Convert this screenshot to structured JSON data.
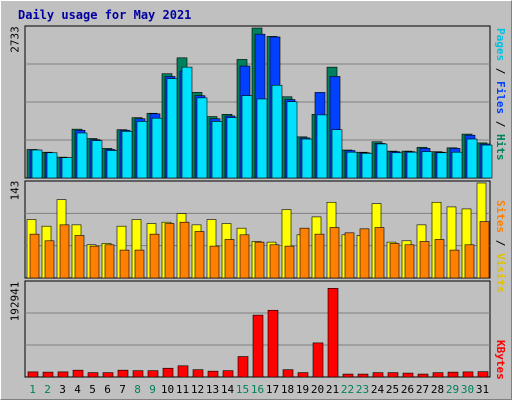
{
  "title": "Daily usage for May 2021",
  "colors": {
    "hits": "#00805c",
    "files": "#0040ff",
    "pages": "#00e0ff",
    "visits": "#ffff00",
    "sites": "#ff8000",
    "kbytes": "#ff0000",
    "weekend_label": "#00805c",
    "weekday_label": "#000000",
    "panel_bg": "#c0c0c0",
    "title": "#0000a0"
  },
  "legend": {
    "top": [
      {
        "text": "Pages",
        "color": "#00c0e0"
      },
      {
        "text": " / ",
        "color": "#000000"
      },
      {
        "text": "Files",
        "color": "#0040ff"
      },
      {
        "text": " / ",
        "color": "#000000"
      },
      {
        "text": "Hits",
        "color": "#00805c"
      }
    ],
    "middle": [
      {
        "text": "Sites",
        "color": "#ff8000"
      },
      {
        "text": " / ",
        "color": "#000000"
      },
      {
        "text": "Visits",
        "color": "#e0c000"
      }
    ],
    "bottom": [
      {
        "text": "KBytes",
        "color": "#ff0000"
      }
    ]
  },
  "chart_data": [
    {
      "type": "bar",
      "panel": "hits-files-pages",
      "categories": [
        "1",
        "2",
        "3",
        "4",
        "5",
        "6",
        "7",
        "8",
        "9",
        "10",
        "11",
        "12",
        "13",
        "14",
        "15",
        "16",
        "17",
        "18",
        "19",
        "20",
        "21",
        "22",
        "23",
        "24",
        "25",
        "26",
        "27",
        "28",
        "29",
        "30",
        "31"
      ],
      "weekend_days": [
        "1",
        "2",
        "8",
        "9",
        "15",
        "16",
        "22",
        "23",
        "29",
        "30"
      ],
      "ymax_label": "2733",
      "ylim": [
        0,
        2733
      ],
      "series": [
        {
          "name": "Hits",
          "values": [
            520,
            470,
            380,
            890,
            720,
            540,
            880,
            1100,
            1180,
            1900,
            2190,
            1560,
            1120,
            1160,
            2160,
            2733,
            2580,
            1480,
            750,
            1160,
            2020,
            510,
            470,
            660,
            490,
            490,
            560,
            480,
            550,
            800,
            640
          ]
        },
        {
          "name": "Files",
          "values": [
            510,
            460,
            370,
            870,
            700,
            520,
            870,
            1080,
            1170,
            1850,
            1950,
            1500,
            1080,
            1130,
            2040,
            2620,
            2570,
            1430,
            730,
            1560,
            1850,
            500,
            460,
            630,
            480,
            480,
            540,
            470,
            540,
            780,
            620
          ]
        },
        {
          "name": "Pages",
          "values": [
            510,
            460,
            370,
            820,
            680,
            500,
            850,
            1030,
            1090,
            1810,
            2020,
            1460,
            1030,
            1100,
            1500,
            1440,
            1690,
            1390,
            710,
            1150,
            880,
            470,
            450,
            620,
            460,
            470,
            480,
            460,
            470,
            710,
            600
          ]
        }
      ]
    },
    {
      "type": "bar",
      "panel": "visits-sites",
      "categories": [
        "1",
        "2",
        "3",
        "4",
        "5",
        "6",
        "7",
        "8",
        "9",
        "10",
        "11",
        "12",
        "13",
        "14",
        "15",
        "16",
        "17",
        "18",
        "19",
        "20",
        "21",
        "22",
        "23",
        "24",
        "25",
        "26",
        "27",
        "28",
        "29",
        "30",
        "31"
      ],
      "ymax_label": "143",
      "ylim": [
        0,
        143
      ],
      "series": [
        {
          "name": "Visits",
          "values": [
            88,
            78,
            118,
            80,
            50,
            52,
            78,
            88,
            82,
            84,
            97,
            80,
            88,
            82,
            75,
            55,
            54,
            103,
            65,
            92,
            114,
            65,
            64,
            112,
            54,
            56,
            80,
            114,
            107,
            104,
            143
          ]
        },
        {
          "name": "Sites",
          "values": [
            66,
            56,
            80,
            64,
            48,
            50,
            42,
            42,
            66,
            82,
            84,
            70,
            48,
            58,
            65,
            54,
            50,
            48,
            75,
            66,
            76,
            68,
            74,
            76,
            52,
            50,
            55,
            58,
            42,
            50,
            85
          ]
        }
      ]
    },
    {
      "type": "bar",
      "panel": "kbytes",
      "categories": [
        "1",
        "2",
        "3",
        "4",
        "5",
        "6",
        "7",
        "8",
        "9",
        "10",
        "11",
        "12",
        "13",
        "14",
        "15",
        "16",
        "17",
        "18",
        "19",
        "20",
        "21",
        "22",
        "23",
        "24",
        "25",
        "26",
        "27",
        "28",
        "29",
        "30",
        "31"
      ],
      "ymax_label": "192941",
      "ylim": [
        0,
        192941
      ],
      "series": [
        {
          "name": "KBytes",
          "values": [
            10500,
            10000,
            10500,
            14000,
            9000,
            9000,
            14000,
            13000,
            13000,
            18000,
            23000,
            15000,
            12000,
            13000,
            42000,
            127000,
            137000,
            15000,
            9000,
            70000,
            182000,
            6000,
            6000,
            9000,
            9000,
            8000,
            6000,
            9000,
            10000,
            10500,
            11000
          ]
        }
      ]
    }
  ]
}
